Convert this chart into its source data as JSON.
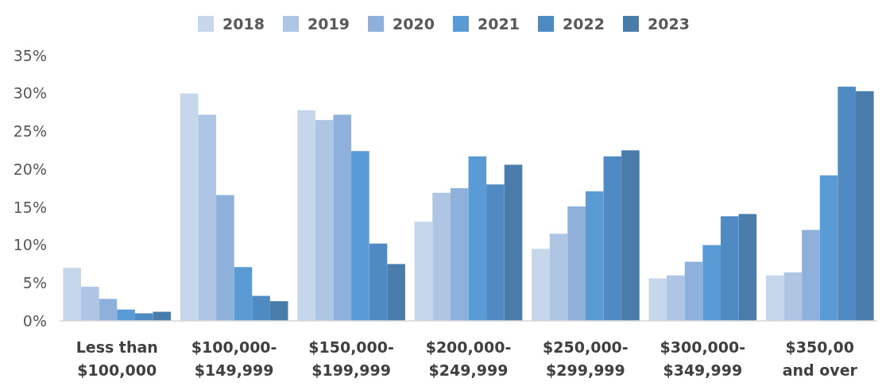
{
  "chart_data": {
    "type": "bar",
    "categories": [
      "Less than $100,000",
      "$100,000-$149,999",
      "$150,000-$199,999",
      "$200,000-$249,999",
      "$250,000-$299,999",
      "$300,000-$349,999",
      "$350,00 and over"
    ],
    "series": [
      {
        "name": "2018",
        "color": "#c6d6eb",
        "values": [
          7.0,
          30.0,
          27.8,
          13.1,
          9.5,
          5.6,
          6.0
        ]
      },
      {
        "name": "2019",
        "color": "#aec6e4",
        "values": [
          4.5,
          27.2,
          26.5,
          16.9,
          11.5,
          6.0,
          6.4
        ]
      },
      {
        "name": "2020",
        "color": "#8eb0da",
        "values": [
          2.9,
          16.6,
          27.2,
          17.5,
          15.1,
          7.8,
          12.0
        ]
      },
      {
        "name": "2021",
        "color": "#5b9bd5",
        "values": [
          1.5,
          7.1,
          22.4,
          21.7,
          17.1,
          10.0,
          19.2
        ]
      },
      {
        "name": "2022",
        "color": "#4f8bc2",
        "values": [
          1.0,
          3.3,
          10.2,
          18.0,
          21.7,
          13.8,
          30.9
        ]
      },
      {
        "name": "2023",
        "color": "#4a7cab",
        "values": [
          1.2,
          2.6,
          7.5,
          20.6,
          22.5,
          14.1,
          30.3
        ]
      }
    ],
    "ylim": [
      0,
      35
    ],
    "yticks": [
      {
        "value": 0,
        "label": "0%"
      },
      {
        "value": 5,
        "label": "5%"
      },
      {
        "value": 10,
        "label": "10%"
      },
      {
        "value": 15,
        "label": "15%"
      },
      {
        "value": 20,
        "label": "20%"
      },
      {
        "value": 25,
        "label": "25%"
      },
      {
        "value": 30,
        "label": "30%"
      },
      {
        "value": 35,
        "label": "35%"
      }
    ],
    "grid": false,
    "legend": "top"
  }
}
